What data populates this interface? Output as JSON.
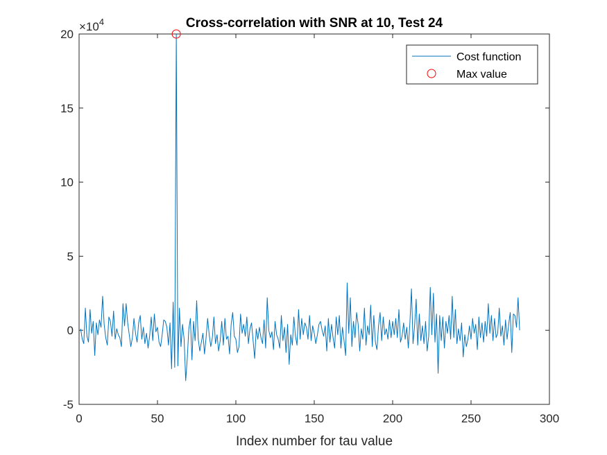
{
  "chart_data": {
    "type": "line",
    "title": "Cross-correlation with SNR at 10, Test 24",
    "xlabel": "Index number for tau value",
    "ylabel": "",
    "xlim": [
      0,
      300
    ],
    "ylim": [
      -5,
      20
    ],
    "y_exponent_label": "×10",
    "y_exponent_power": "4",
    "x_ticks": [
      0,
      50,
      100,
      150,
      200,
      250,
      300
    ],
    "x_tick_labels": [
      "0",
      "50",
      "100",
      "150",
      "200",
      "250",
      "300"
    ],
    "y_ticks": [
      -5,
      0,
      5,
      10,
      15,
      20
    ],
    "y_tick_labels": [
      "-5",
      "0",
      "5",
      "10",
      "15",
      "20"
    ],
    "grid": false,
    "legend_position": "top-right",
    "series": [
      {
        "name": "Cost function",
        "color": "#0072BD",
        "x_start": 1,
        "y": [
          0.1,
          -0.6,
          -0.9,
          1.5,
          -0.4,
          -0.8,
          1.4,
          -0.2,
          0.6,
          -1.7,
          0.5,
          -0.3,
          0.7,
          0.2,
          2.3,
          0.4,
          -0.5,
          -1.0,
          0.9,
          0.6,
          -0.4,
          1.3,
          -0.6,
          0.1,
          -0.3,
          -0.5,
          -1.1,
          1.8,
          0.3,
          1.8,
          0.5,
          -0.3,
          -1.1,
          -0.5,
          0.8,
          -0.2,
          -0.8,
          0.5,
          1.0,
          -0.6,
          0.2,
          -0.9,
          -0.2,
          -1.2,
          -0.4,
          0.9,
          -0.7,
          1.1,
          -0.1,
          0.2,
          -0.8,
          -1.1,
          -0.3,
          0.7,
          0.6,
          0.2,
          -1.0,
          0.5,
          -2.6,
          1.9,
          -2.5,
          20.0,
          -2.4,
          1.5,
          -1.1,
          0.4,
          -0.6,
          -3.4,
          -1.9,
          0.1,
          0.8,
          -2.0,
          0.6,
          -0.7,
          2.0,
          -0.6,
          -1.4,
          -0.8,
          -0.2,
          -1.6,
          -0.5,
          0.8,
          -0.3,
          -1.1,
          -0.5,
          0.9,
          -0.9,
          -0.3,
          -1.4,
          -0.7,
          0.6,
          -1.0,
          0.8,
          -0.6,
          -0.4,
          -1.6,
          0.4,
          1.2,
          -0.4,
          -0.6,
          -1.5,
          -1.1,
          1.1,
          -0.2,
          0.4,
          -0.4,
          0.9,
          -0.9,
          0.1,
          0.5,
          -0.7,
          -1.9,
          0.1,
          -0.6,
          0.2,
          -0.5,
          -0.9,
          0.7,
          -1.2,
          2.2,
          0.0,
          -0.5,
          -0.1,
          -1.3,
          0.6,
          -0.3,
          -0.6,
          -1.2,
          1.0,
          -0.7,
          0.2,
          -1.5,
          0.4,
          -2.3,
          -0.3,
          -1.0,
          0.9,
          -0.4,
          -1.0,
          1.4,
          -0.6,
          0.8,
          -0.3,
          0.5,
          0.2,
          -0.6,
          1.0,
          -0.7,
          0.3,
          -0.2,
          -0.9,
          -0.3,
          0.4,
          0.6,
          0.0,
          -0.4,
          0.3,
          -1.4,
          0.8,
          -0.8,
          0.4,
          -0.5,
          -1.2,
          0.9,
          -0.3,
          1.0,
          -1.2,
          0.2,
          -0.7,
          -1.7,
          3.2,
          -0.2,
          2.2,
          -1.1,
          0.6,
          -0.5,
          1.2,
          0.4,
          -1.4,
          0.1,
          -0.6,
          1.5,
          -1.0,
          0.3,
          -0.3,
          1.7,
          -1.1,
          1.0,
          -0.8,
          -1.3,
          0.3,
          1.2,
          -0.7,
          0.9,
          -0.3,
          0.1,
          -0.6,
          0.7,
          -0.5,
          0.6,
          -0.3,
          0.8,
          -0.5,
          1.4,
          -0.8,
          -0.4,
          0.5,
          -0.6,
          0.2,
          -1.2,
          0.5,
          2.8,
          -0.9,
          0.3,
          2.1,
          -1.0,
          1.1,
          -0.7,
          0.3,
          -0.9,
          0.6,
          -1.4,
          -0.4,
          2.9,
          -0.3,
          2.5,
          -0.8,
          1.1,
          -2.9,
          1.0,
          -0.7,
          0.9,
          -1.2,
          0.6,
          -0.2,
          1.0,
          -0.6,
          2.3,
          -0.5,
          1.4,
          -0.9,
          0.1,
          -0.7,
          0.5,
          -1.8,
          -0.3,
          -1.1,
          -0.6,
          0.3,
          -0.6,
          0.8,
          -0.2,
          0.4,
          -1.3,
          0.9,
          -0.5,
          0.5,
          -0.8,
          0.6,
          -0.4,
          1.8,
          -0.2,
          1.0,
          -0.7,
          0.8,
          -0.5,
          -0.2,
          1.5,
          -0.4,
          0.3,
          -1.0,
          0.7,
          -0.6,
          0.4,
          1.2,
          -1.5,
          1.1,
          1.0,
          0.2,
          2.2,
          0.0
        ]
      },
      {
        "name": "Max value",
        "color": "#FF0000",
        "marker": "circle",
        "points": [
          {
            "x": 62,
            "y": 20.0
          }
        ]
      }
    ]
  }
}
